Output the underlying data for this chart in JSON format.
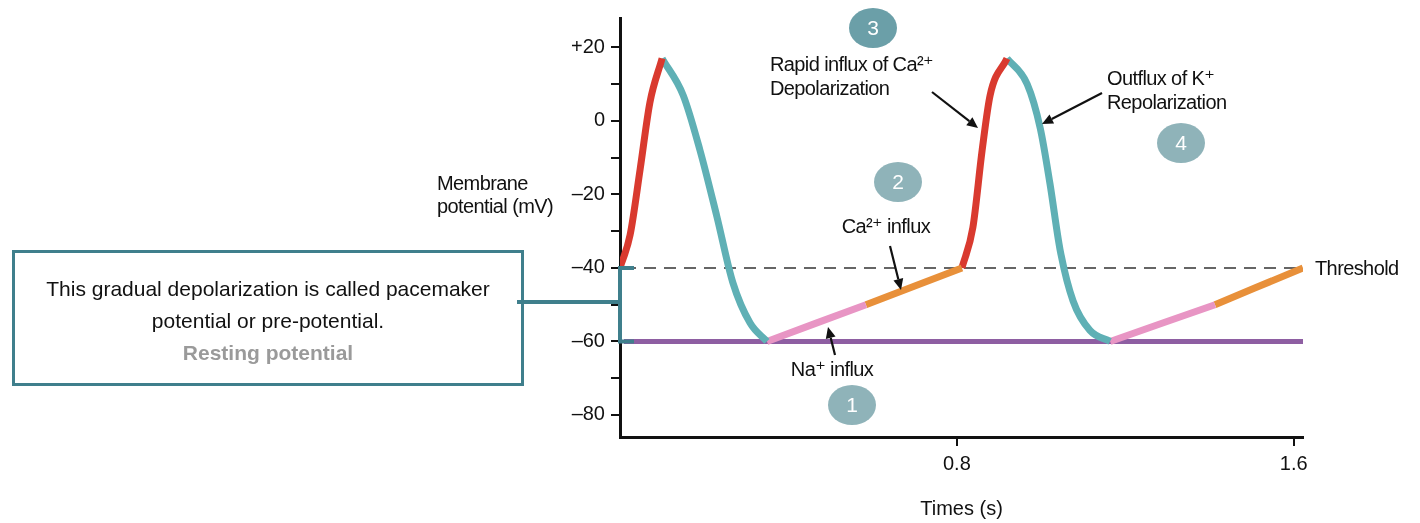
{
  "chart_data": {
    "type": "line",
    "xlabel": "Times (s)",
    "ylabel": "Membrane potential (mV)",
    "xlim": [
      0,
      1.622
    ],
    "ylim": [
      -86,
      28
    ],
    "xticks": [
      0.8,
      1.6
    ],
    "yticks": [
      {
        "value": -80,
        "label": "–80"
      },
      {
        "value": -70,
        "label": null
      },
      {
        "value": -60,
        "label": "–60"
      },
      {
        "value": -50,
        "label": null
      },
      {
        "value": -40,
        "label": "–40"
      },
      {
        "value": -30,
        "label": null
      },
      {
        "value": -20,
        "label": "–20"
      },
      {
        "value": -10,
        "label": null
      },
      0,
      {
        "value": 10,
        "label": null
      },
      {
        "value": 20,
        "label": "+20"
      }
    ],
    "grid": false,
    "legend": false,
    "marker": "none",
    "line_style": "solid",
    "series": [
      {
        "color": "#d93a2f",
        "x": [
          0,
          0.024,
          0.048,
          0.071,
          0.1
        ],
        "values": [
          -40,
          -31,
          -13,
          5,
          17
        ]
      },
      {
        "color": "#5fb0b5",
        "x": [
          0.1,
          0.15,
          0.19,
          0.23,
          0.268,
          0.309,
          0.349
        ],
        "values": [
          17,
          7,
          -8,
          -26,
          -44,
          -55,
          -60
        ]
      },
      {
        "color": "#e895c4",
        "x": [
          0.349,
          0.584
        ],
        "values": [
          -60,
          -50
        ]
      },
      {
        "color": "#e8903a",
        "x": [
          0.584,
          0.812
        ],
        "values": [
          -50,
          -40
        ]
      },
      {
        "color": "#d93a2f",
        "x": [
          0.812,
          0.838,
          0.86,
          0.879,
          0.919
        ],
        "values": [
          -40,
          -29,
          -8,
          7,
          17
        ]
      },
      {
        "color": "#5fb0b5",
        "x": [
          0.919,
          0.967,
          0.998,
          1.021,
          1.045,
          1.076,
          1.116,
          1.164
        ],
        "values": [
          17,
          10,
          -2,
          -17,
          -35,
          -49,
          -57,
          -60
        ]
      },
      {
        "color": "#e895c4",
        "x": [
          1.164,
          1.413
        ],
        "values": [
          -60,
          -50
        ]
      },
      {
        "color": "#e8903a",
        "x": [
          1.413,
          1.622
        ],
        "values": [
          -50,
          -40
        ]
      }
    ],
    "ref_lines": [
      {
        "axis": "y",
        "value": -40,
        "label": "Threshold",
        "color": "#333333",
        "line_style": "dashed"
      },
      {
        "axis": "y",
        "value": -60,
        "color": "#8e5ea2",
        "line_style": "solid"
      }
    ],
    "annotations": [
      "1",
      "2",
      "3",
      "4",
      {
        "text": "Na⁺ influx",
        "x": 0.494,
        "y": -56
      },
      {
        "text": "Ca²⁺ influx",
        "x": 0.667,
        "y": -46
      },
      {
        "text": "Rapid influx of Ca²⁺\nDepolarization",
        "x": 0.85,
        "y": -2
      },
      "Outflux of K⁺\nRepolarization",
      "This gradual depolarization is called pacemaker potential or pre-potential.",
      "Resting potential"
    ]
  }
}
